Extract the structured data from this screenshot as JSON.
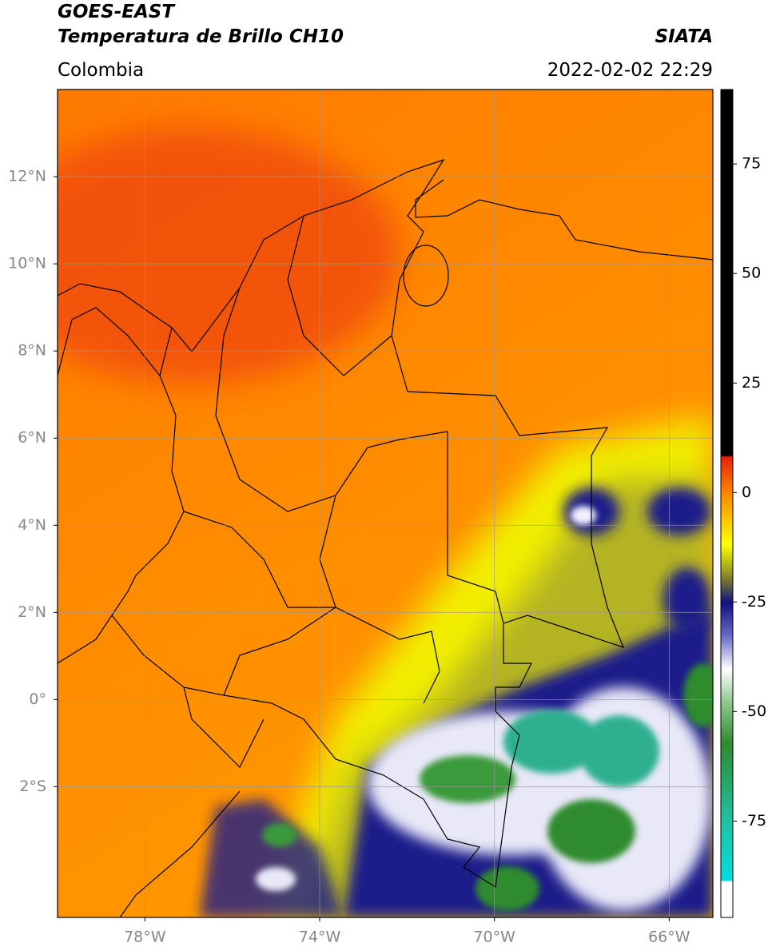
{
  "header": {
    "title": "GOES-EAST",
    "subtitle": "Temperatura de Brillo CH10",
    "source": "SIATA",
    "region": "Colombia",
    "datetime": "2022-02-02 22:29"
  },
  "map": {
    "xlim": [
      -80,
      -65
    ],
    "ylim": [
      -5,
      14
    ],
    "grid": true,
    "xticks": [
      {
        "value": -78,
        "label": "78°W"
      },
      {
        "value": -74,
        "label": "74°W"
      },
      {
        "value": -70,
        "label": "70°W"
      },
      {
        "value": -66,
        "label": "66°W"
      }
    ],
    "yticks": [
      {
        "value": 12,
        "label": "12°N"
      },
      {
        "value": 10,
        "label": "10°N"
      },
      {
        "value": 8,
        "label": "8°N"
      },
      {
        "value": 6,
        "label": "6°N"
      },
      {
        "value": 4,
        "label": "4°N"
      },
      {
        "value": 2,
        "label": "2°N"
      },
      {
        "value": 0,
        "label": "0°"
      },
      {
        "value": -2,
        "label": "2°S"
      }
    ]
  },
  "colorbar": {
    "lim": [
      -97,
      92
    ],
    "ticks": [
      75,
      50,
      25,
      0,
      -25,
      -50,
      -75
    ]
  }
}
